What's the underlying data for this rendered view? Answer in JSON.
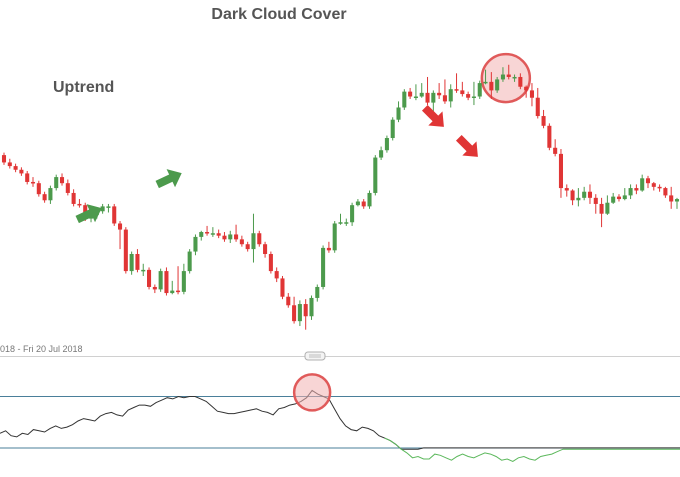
{
  "chart_data": [
    {
      "type": "candlestick",
      "title": "Dark Cloud Cover",
      "annotations": [
        {
          "text": "Uptrend"
        }
      ],
      "date_range_label": "018 - Fri 20 Jul 2018",
      "price_scale_hint": "unlabeled (values read as relative price units)",
      "colors": {
        "up": "#4c9a4c",
        "down": "#e03535",
        "highlight_circle": "#e05a5a",
        "highlight_fill": "#f3b3b3"
      },
      "candles": [
        [
          198,
          192,
          200,
          190
        ],
        [
          192,
          189,
          195,
          187
        ],
        [
          189,
          186,
          191,
          184
        ],
        [
          186,
          183,
          188,
          181
        ],
        [
          183,
          176,
          185,
          174
        ],
        [
          176,
          175,
          180,
          172
        ],
        [
          175,
          166,
          177,
          164
        ],
        [
          166,
          161,
          168,
          159
        ],
        [
          161,
          171,
          173,
          158
        ],
        [
          171,
          180,
          182,
          169
        ],
        [
          180,
          175,
          183,
          173
        ],
        [
          175,
          167,
          178,
          165
        ],
        [
          167,
          158,
          170,
          156
        ],
        [
          158,
          157,
          162,
          155
        ],
        [
          157,
          146,
          159,
          144
        ],
        [
          146,
          149,
          151,
          143
        ],
        [
          149,
          152,
          154,
          146
        ],
        [
          152,
          156,
          158,
          150
        ],
        [
          156,
          156,
          158,
          151
        ],
        [
          156,
          142,
          158,
          140
        ],
        [
          142,
          137,
          144,
          121
        ],
        [
          137,
          103,
          139,
          101
        ],
        [
          103,
          117,
          119,
          100
        ],
        [
          117,
          104,
          121,
          102
        ],
        [
          104,
          104,
          109,
          99
        ],
        [
          104,
          90,
          106,
          88
        ],
        [
          90,
          88,
          92,
          85
        ],
        [
          88,
          103,
          105,
          86
        ],
        [
          103,
          85,
          106,
          83
        ],
        [
          85,
          87,
          95,
          84
        ],
        [
          87,
          86,
          107,
          84
        ],
        [
          86,
          103,
          109,
          84
        ],
        [
          103,
          119,
          121,
          101
        ],
        [
          119,
          131,
          133,
          116
        ],
        [
          131,
          135,
          136,
          128
        ],
        [
          135,
          134,
          140,
          132
        ],
        [
          134,
          134,
          139,
          131
        ],
        [
          134,
          132,
          137,
          130
        ],
        [
          132,
          129,
          135,
          127
        ],
        [
          129,
          133,
          136,
          126
        ],
        [
          133,
          129,
          141,
          127
        ],
        [
          129,
          125,
          132,
          123
        ],
        [
          125,
          121,
          127,
          119
        ],
        [
          121,
          134,
          150,
          110
        ],
        [
          134,
          125,
          136,
          123
        ],
        [
          125,
          117,
          127,
          114
        ],
        [
          117,
          103,
          119,
          101
        ],
        [
          103,
          97,
          106,
          94
        ],
        [
          97,
          82,
          99,
          80
        ],
        [
          82,
          75,
          85,
          73
        ],
        [
          75,
          62,
          82,
          60
        ],
        [
          62,
          76,
          79,
          58
        ],
        [
          76,
          66,
          80,
          55
        ],
        [
          66,
          81,
          83,
          63
        ],
        [
          81,
          90,
          92,
          78
        ],
        [
          90,
          122,
          124,
          88
        ],
        [
          122,
          120,
          127,
          118
        ],
        [
          120,
          142,
          144,
          118
        ],
        [
          142,
          143,
          150,
          141
        ],
        [
          143,
          143,
          146,
          140
        ],
        [
          143,
          157,
          159,
          140
        ],
        [
          157,
          160,
          162,
          156
        ],
        [
          160,
          156,
          162,
          154
        ],
        [
          156,
          167,
          169,
          154
        ],
        [
          167,
          196,
          198,
          165
        ],
        [
          196,
          202,
          205,
          194
        ],
        [
          202,
          212,
          214,
          200
        ],
        [
          212,
          227,
          229,
          210
        ],
        [
          227,
          237,
          242,
          225
        ],
        [
          237,
          250,
          252,
          235
        ],
        [
          250,
          246,
          253,
          244
        ],
        [
          246,
          246,
          256,
          243
        ],
        [
          246,
          249,
          257,
          245
        ],
        [
          249,
          241,
          262,
          239
        ],
        [
          241,
          249,
          251,
          228
        ],
        [
          249,
          247,
          257,
          244
        ],
        [
          247,
          242,
          260,
          240
        ],
        [
          242,
          252,
          256,
          237
        ],
        [
          252,
          251,
          265,
          249
        ],
        [
          251,
          248,
          258,
          246
        ],
        [
          248,
          245,
          250,
          243
        ],
        [
          245,
          246,
          258,
          239
        ],
        [
          246,
          257,
          259,
          244
        ],
        [
          257,
          258,
          268,
          256
        ],
        [
          258,
          251,
          266,
          244
        ],
        [
          251,
          260,
          262,
          249
        ],
        [
          260,
          264,
          270,
          258
        ],
        [
          264,
          262,
          272,
          260
        ],
        [
          262,
          262,
          264,
          258
        ],
        [
          262,
          254,
          265,
          252
        ],
        [
          254,
          251,
          255,
          245
        ],
        [
          251,
          245,
          257,
          238
        ],
        [
          245,
          230,
          253,
          228
        ],
        [
          230,
          222,
          235,
          220
        ],
        [
          222,
          204,
          224,
          202
        ],
        [
          204,
          199,
          211,
          197
        ],
        [
          199,
          171,
          203,
          163
        ],
        [
          171,
          169,
          174,
          164
        ],
        [
          169,
          161,
          170,
          157
        ],
        [
          161,
          163,
          171,
          156
        ],
        [
          163,
          168,
          172,
          161
        ],
        [
          168,
          163,
          174,
          158
        ],
        [
          163,
          158,
          166,
          150
        ],
        [
          158,
          150,
          163,
          139
        ],
        [
          150,
          159,
          165,
          149
        ],
        [
          159,
          164,
          167,
          158
        ],
        [
          164,
          162,
          166,
          160
        ],
        [
          162,
          165,
          171,
          161
        ],
        [
          165,
          171,
          174,
          162
        ],
        [
          171,
          169,
          174,
          166
        ],
        [
          169,
          179,
          182,
          168
        ],
        [
          179,
          175,
          181,
          171
        ],
        [
          175,
          172,
          176,
          169
        ],
        [
          172,
          171,
          174,
          168
        ],
        [
          171,
          165,
          172,
          163
        ],
        [
          165,
          160,
          172,
          154
        ],
        [
          160,
          162,
          163,
          154
        ]
      ]
    },
    {
      "type": "line",
      "series": [
        {
          "values": [
            50,
            52,
            48,
            47,
            50,
            49,
            53,
            52,
            51,
            54,
            56,
            54,
            55,
            57,
            60,
            62,
            61,
            60,
            64,
            66,
            67,
            65,
            64,
            69,
            71,
            73,
            73,
            72,
            75,
            77,
            79,
            78,
            80,
            79,
            80,
            80,
            78,
            76,
            72,
            68,
            67,
            66,
            66,
            67,
            68,
            69,
            70,
            68,
            67,
            65,
            70,
            71,
            73,
            74,
            76,
            79,
            85,
            82,
            80,
            78,
            70,
            62,
            56,
            53,
            52,
            55,
            54,
            52,
            48,
            46,
            44,
            41,
            37,
            37,
            37,
            37,
            38,
            38,
            38,
            38,
            38,
            38,
            38,
            38,
            38,
            38,
            38,
            38,
            38,
            38,
            38,
            38,
            38,
            38,
            38,
            38,
            38,
            38,
            38,
            38,
            38,
            38,
            38,
            38,
            38,
            38,
            38,
            38,
            38,
            38,
            38,
            38,
            38,
            38,
            38,
            38,
            38,
            38,
            38,
            38,
            38,
            38,
            38
          ]
        },
        {
          "values": [
            null,
            null,
            null,
            null,
            null,
            null,
            null,
            null,
            null,
            null,
            null,
            null,
            null,
            null,
            null,
            null,
            null,
            null,
            null,
            null,
            null,
            null,
            null,
            null,
            null,
            null,
            null,
            null,
            null,
            null,
            null,
            null,
            null,
            null,
            null,
            null,
            null,
            null,
            null,
            null,
            null,
            null,
            null,
            null,
            null,
            null,
            null,
            null,
            null,
            null,
            null,
            null,
            null,
            null,
            null,
            null,
            null,
            null,
            null,
            null,
            null,
            null,
            null,
            null,
            null,
            null,
            null,
            null,
            null,
            46,
            44,
            41,
            37,
            34,
            30,
            31,
            29,
            29,
            33,
            32,
            30,
            28,
            31,
            33,
            31,
            30,
            32,
            34,
            33,
            31,
            28,
            29,
            27,
            30,
            31,
            29,
            28,
            31,
            32,
            33,
            35,
            37,
            37,
            37,
            37,
            37,
            37,
            37,
            37,
            37,
            37,
            37,
            37,
            37,
            37,
            37,
            37,
            37,
            37,
            37,
            37,
            37,
            37,
            37
          ]
        }
      ],
      "overbought": 80,
      "oversold": 38,
      "ylim": [
        20,
        100
      ]
    }
  ]
}
